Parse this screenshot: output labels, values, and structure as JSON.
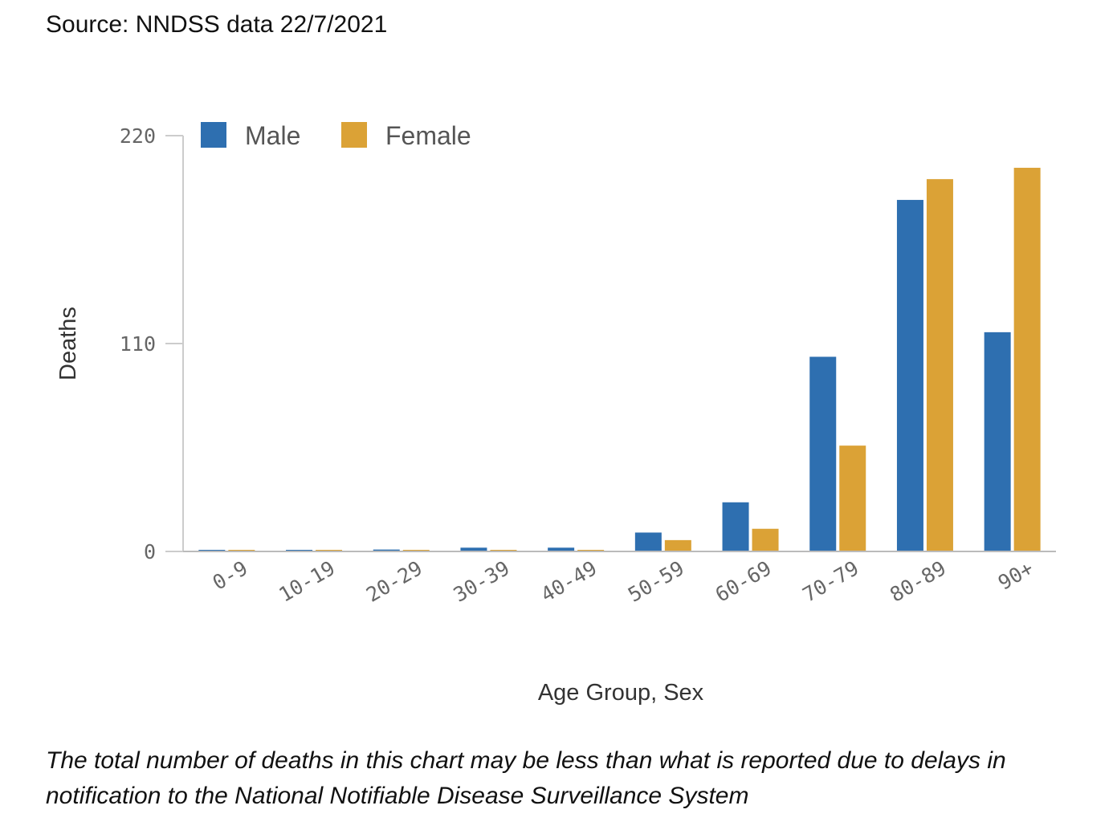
{
  "source": "Source: NNDSS data 22/7/2021",
  "note": "The total number of deaths in this chart may be less than what is reported due to delays in notification to the National Notifiable Disease Surveillance System",
  "chart_data": {
    "type": "bar",
    "xlabel": "Age Group, Sex",
    "ylabel": "Deaths",
    "ylim": [
      0,
      220
    ],
    "yticks": [
      "0",
      "110",
      "220"
    ],
    "categories": [
      "0-9",
      "10-19",
      "20-29",
      "30-39",
      "40-49",
      "50-59",
      "60-69",
      "70-79",
      "80-89",
      "90+"
    ],
    "series": [
      {
        "name": "Male",
        "color": "#2e6fb0",
        "values": [
          0,
          0,
          1,
          2,
          2,
          10,
          26,
          103,
          186,
          116
        ]
      },
      {
        "name": "Female",
        "color": "#dba236",
        "values": [
          0,
          0,
          0,
          0,
          0,
          6,
          12,
          56,
          197,
          203
        ]
      }
    ],
    "legend_position": "top-left",
    "grid": false
  }
}
